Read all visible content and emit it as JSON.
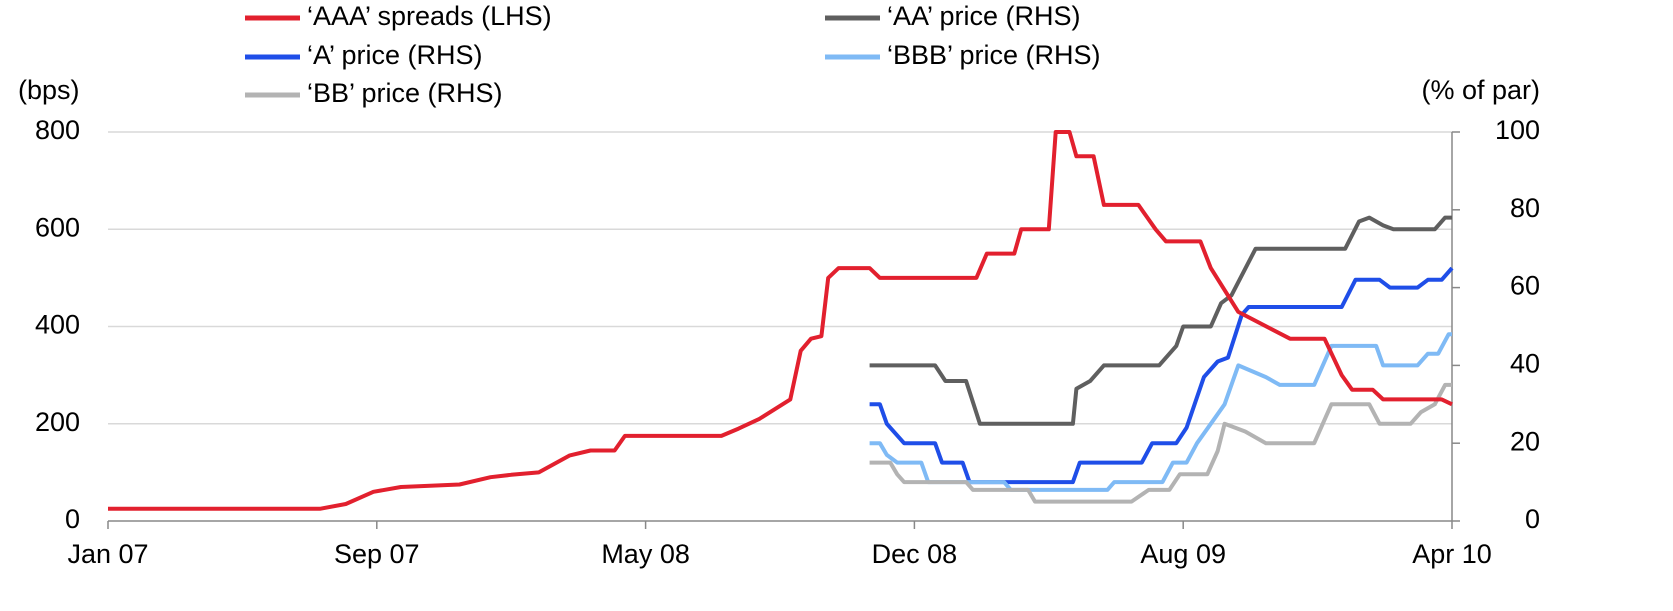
{
  "chart_data": {
    "type": "line",
    "y_label": "(bps)",
    "y2_label": "(% of par)",
    "xlim": [
      0,
      39
    ],
    "xticks": [
      {
        "value": 0,
        "label": "Jan 07"
      },
      {
        "value": 7.8,
        "label": "Sep 07"
      },
      {
        "value": 15.6,
        "label": "May 08"
      },
      {
        "value": 23.4,
        "label": "Dec 08"
      },
      {
        "value": 31.2,
        "label": "Aug 09"
      },
      {
        "value": 39,
        "label": "Apr 10"
      }
    ],
    "ylim": [
      0,
      800
    ],
    "yticks": [
      0,
      200,
      400,
      600,
      800
    ],
    "y2lim": [
      0,
      100
    ],
    "y2ticks": [
      0,
      20,
      40,
      60,
      80,
      100
    ],
    "grid": true,
    "series": [
      {
        "name": "‘AAA’ spreads (LHS)",
        "color": "#e2202e",
        "axis": "y",
        "x": [
          0,
          6.15,
          6.9,
          7.7,
          8.5,
          10.2,
          11.1,
          11.7,
          12.5,
          13.4,
          14.0,
          14.7,
          15.0,
          17.8,
          18.3,
          18.9,
          19.8,
          20.1,
          20.4,
          20.7,
          20.9,
          21.2,
          22.1,
          22.4,
          25.2,
          25.5,
          26.3,
          26.5,
          27.3,
          27.5,
          27.9,
          28.1,
          28.6,
          28.9,
          29.9,
          30.4,
          30.7,
          31.7,
          32.0,
          32.8,
          34.3,
          35.3,
          35.8,
          36.1,
          36.7,
          37.0,
          38.7,
          39
        ],
        "values": [
          25,
          25,
          35,
          60,
          70,
          75,
          90,
          95,
          100,
          135,
          145,
          145,
          175,
          175,
          190,
          210,
          250,
          350,
          375,
          380,
          500,
          520,
          520,
          500,
          500,
          550,
          550,
          600,
          600,
          800,
          800,
          750,
          750,
          650,
          650,
          600,
          575,
          575,
          520,
          430,
          375,
          375,
          300,
          270,
          270,
          250,
          250,
          240
        ]
      },
      {
        "name": "‘AA’ price (RHS)",
        "color": "#5f5f5f",
        "axis": "y2",
        "x": [
          22.1,
          24.0,
          24.3,
          24.9,
          25.3,
          28.0,
          28.1,
          28.5,
          28.9,
          30.5,
          31.0,
          31.2,
          32.0,
          32.3,
          32.6,
          33.3,
          35.9,
          36.3,
          36.6,
          37.0,
          37.3,
          38.5,
          38.8,
          39
        ],
        "values": [
          40,
          40,
          36,
          36,
          25,
          25,
          34,
          36,
          40,
          40,
          45,
          50,
          50,
          56,
          58,
          70,
          70,
          77,
          78,
          76,
          75,
          75,
          78,
          78
        ]
      },
      {
        "name": "‘A’ price (RHS)",
        "color": "#1f4ee8",
        "axis": "y2",
        "x": [
          22.1,
          22.4,
          22.6,
          23.1,
          24.0,
          24.2,
          24.8,
          25.0,
          28.0,
          28.2,
          30.0,
          30.3,
          31.0,
          31.3,
          31.8,
          32.2,
          32.5,
          32.9,
          33.1,
          35.8,
          36.2,
          36.9,
          37.2,
          38.0,
          38.3,
          38.7,
          39
        ],
        "values": [
          30,
          30,
          25,
          20,
          20,
          15,
          15,
          10,
          10,
          15,
          15,
          20,
          20,
          24,
          37,
          41,
          42,
          53,
          55,
          55,
          62,
          62,
          60,
          60,
          62,
          62,
          65
        ]
      },
      {
        "name": "‘BBB’ price (RHS)",
        "color": "#7fbaf5",
        "axis": "y2",
        "x": [
          22.1,
          22.4,
          22.6,
          22.9,
          23.6,
          23.8,
          26.0,
          26.2,
          29.0,
          29.2,
          30.6,
          30.9,
          31.3,
          31.6,
          32.0,
          32.4,
          32.8,
          33.6,
          34.0,
          35.0,
          35.5,
          36.8,
          37.0,
          38.0,
          38.3,
          38.6,
          38.9,
          39
        ],
        "values": [
          20,
          20,
          17,
          15,
          15,
          10,
          10,
          8,
          8,
          10,
          10,
          15,
          15,
          20,
          25,
          30,
          40,
          37,
          35,
          35,
          45,
          45,
          40,
          40,
          43,
          43,
          48,
          48
        ]
      },
      {
        "name": "‘BB’ price (RHS)",
        "color": "#b3b3b3",
        "axis": "y2",
        "x": [
          22.1,
          22.7,
          22.9,
          23.1,
          24.9,
          25.1,
          26.7,
          26.9,
          29.7,
          30.2,
          30.8,
          31.1,
          31.9,
          32.2,
          32.4,
          33.0,
          33.6,
          35.0,
          35.5,
          36.6,
          36.9,
          37.8,
          38.1,
          38.5,
          38.8,
          39
        ],
        "values": [
          15,
          15,
          12,
          10,
          10,
          8,
          8,
          5,
          5,
          8,
          8,
          12,
          12,
          18,
          25,
          23,
          20,
          20,
          30,
          30,
          25,
          25,
          28,
          30,
          35,
          35
        ]
      }
    ]
  }
}
